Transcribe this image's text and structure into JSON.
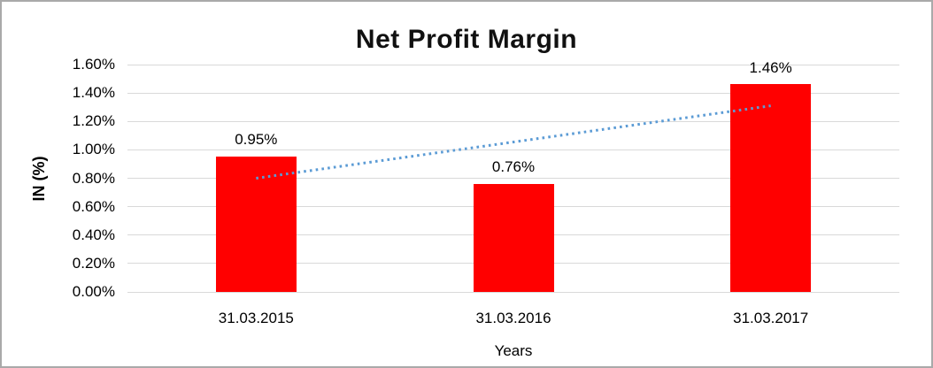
{
  "window": {
    "background": "#ffffff",
    "border_color": "#a9a9a9"
  },
  "chart_data": {
    "type": "bar",
    "title": "Net Profit Margin",
    "xlabel": "Years",
    "ylabel": "IN (%)",
    "categories": [
      "31.03.2015",
      "31.03.2016",
      "31.03.2017"
    ],
    "values": [
      0.95,
      0.76,
      1.46
    ],
    "data_labels": [
      "0.95%",
      "0.76%",
      "1.46%"
    ],
    "y_ticks": [
      "0.00%",
      "0.20%",
      "0.40%",
      "0.60%",
      "0.80%",
      "1.00%",
      "1.20%",
      "1.40%",
      "1.60%"
    ],
    "ylim": [
      0,
      1.6
    ],
    "grid": "horizontal",
    "legend": "none",
    "colors": {
      "bar": "#ff0000",
      "gridline": "#d9d9d9",
      "text": "#000000",
      "trendline": "#5b9bd5"
    },
    "trendline": {
      "type": "linear",
      "style": "dotted",
      "color": "#5b9bd5",
      "start_value": 0.8,
      "end_value": 1.31
    }
  }
}
